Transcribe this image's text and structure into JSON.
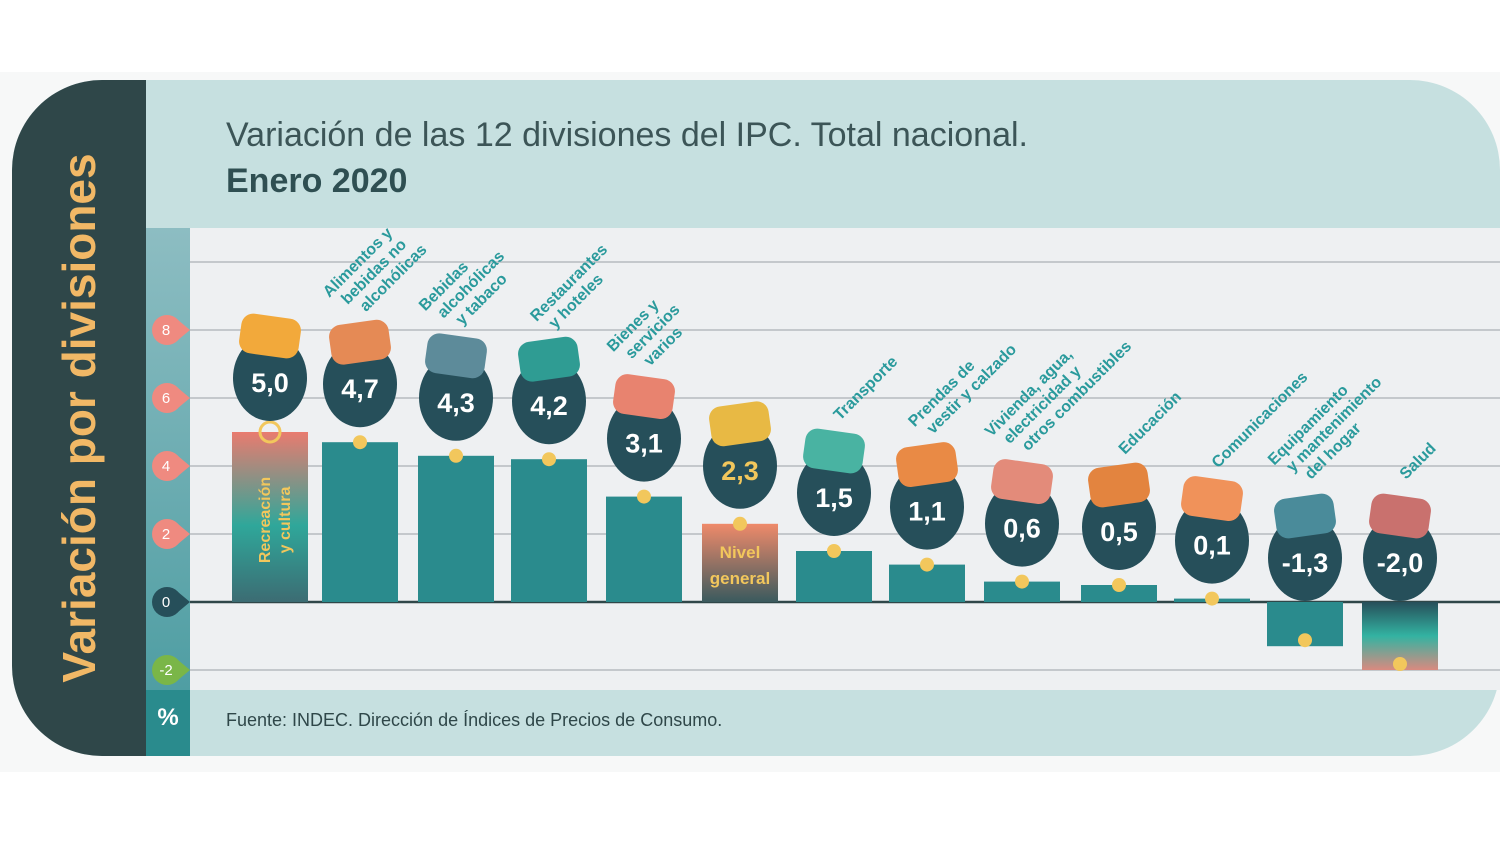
{
  "side_title": "Variación por divisiones",
  "title_line1": "Variación de las 12 divisiones del IPC. Total nacional.",
  "title_line2": "Enero 2020",
  "unit": "%",
  "footer": "Fuente: INDEC. Dirección de Índices de Precios de Consumo.",
  "colors": {
    "bar": "#2a8b8d",
    "bubble": "#264f5a",
    "dot": "#f2c75c",
    "label": "#2a9a9c",
    "tick_pos": "#ef8a80",
    "tick_zero": "#264f5a",
    "tick_neg": "#7ab648",
    "highlight_text": "#f2c75c"
  },
  "chart_data": {
    "type": "bar",
    "ylim": [
      -2,
      8
    ],
    "yticks": [
      "8",
      "6",
      "4",
      "2",
      "0",
      "-2"
    ],
    "ytick_values": [
      8,
      6,
      4,
      2,
      0,
      -2
    ],
    "grid": true,
    "categories": [
      "Recreación y cultura",
      "Alimentos y bebidas no alcohólicas",
      "Bebidas alcohólicas y tabaco",
      "Restaurantes y hoteles",
      "Bienes y servicios varios",
      "Nivel general",
      "Transporte",
      "Prendas de vestir y calzado",
      "Vivienda, agua, electricidad y otros combustibles",
      "Educación",
      "Comunicaciones",
      "Equipamiento y mantenimiento del hogar",
      "Salud"
    ],
    "label_lines": [
      [
        "Recreación",
        "y cultura"
      ],
      [
        "Alimentos y",
        "bebidas no",
        "alcohólicas"
      ],
      [
        "Bebidas",
        "alcohólicas",
        "y tabaco"
      ],
      [
        "Restaurantes",
        "y hoteles"
      ],
      [
        "Bienes y",
        "servicios",
        "varios"
      ],
      [
        "Nivel",
        "general"
      ],
      [
        "Transporte"
      ],
      [
        "Prendas de",
        "vestir y calzado"
      ],
      [
        "Vivienda, agua,",
        "electricidad y",
        "otros combustibles"
      ],
      [
        "Educación"
      ],
      [
        "Comunicaciones"
      ],
      [
        "Equipamiento",
        "y mantenimiento",
        "del hogar"
      ],
      [
        "Salud"
      ]
    ],
    "values": [
      5.0,
      4.7,
      4.3,
      4.2,
      3.1,
      2.3,
      1.5,
      1.1,
      0.6,
      0.5,
      0.1,
      -1.3,
      -2.0
    ],
    "value_labels": [
      "5,0",
      "4,7",
      "4,3",
      "4,2",
      "3,1",
      "2,3",
      "1,5",
      "1,1",
      "0,6",
      "0,5",
      "0,1",
      "-1,3",
      "-2,0"
    ],
    "icons": [
      "sun-umbrella-icon",
      "roast-chicken-icon",
      "bottle-icon",
      "travel-luggage-icon",
      "comb-scissors-icon",
      "shopping-bag-icon",
      "car-sube-icon",
      "tshirt-shoe-icon",
      "lightbulb-wrench-icon",
      "book-icon",
      "phone-icon",
      "washing-machine-icon",
      "first-aid-icon"
    ]
  }
}
